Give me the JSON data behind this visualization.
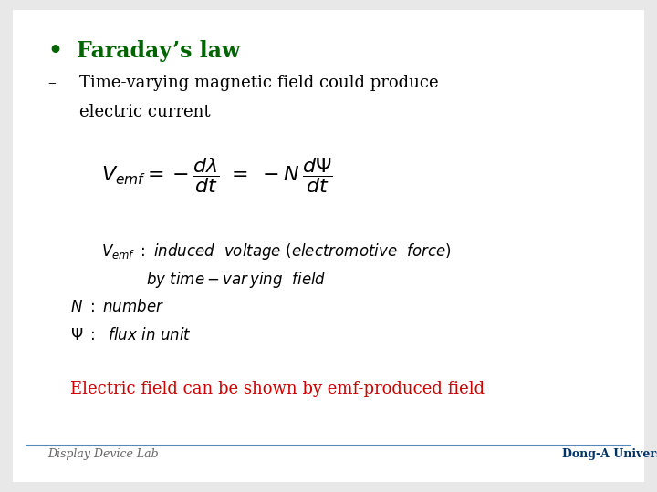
{
  "background_color": "#e8e8e8",
  "slide_bg": "#ffffff",
  "title": "Faraday’s law",
  "title_color": "#006400",
  "bullet_color": "#006400",
  "subtitle_line1": "Time-varying magnetic field could produce",
  "subtitle_line2": "electric current",
  "subtitle_color": "#000000",
  "highlight": "Electric field can be shown by emf-produced field",
  "highlight_color": "#cc0000",
  "footer_left": "Display Device Lab",
  "footer_right": "Dong-A University",
  "line_color": "#5588bb"
}
